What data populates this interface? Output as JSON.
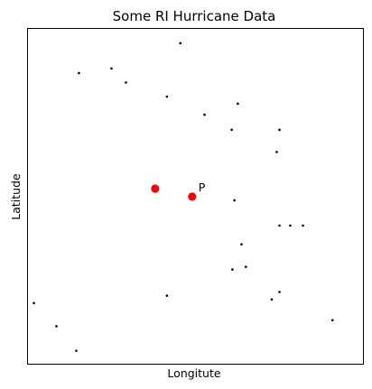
{
  "chart_data": {
    "type": "scatter",
    "title": "Some RI Hurricane Data",
    "xlabel": "Longitute",
    "ylabel": "Latitude",
    "xlim": [
      0,
      100
    ],
    "ylim": [
      0,
      100
    ],
    "ticks": "none",
    "grid": false,
    "series": [
      {
        "marker": "dot-small",
        "color": "#000000",
        "points": [
          [
            45.5,
            95.6
          ],
          [
            15.3,
            86.7
          ],
          [
            25.0,
            88.1
          ],
          [
            29.3,
            83.9
          ],
          [
            41.5,
            79.7
          ],
          [
            52.7,
            74.3
          ],
          [
            62.6,
            77.6
          ],
          [
            60.8,
            69.8
          ],
          [
            75.0,
            69.8
          ],
          [
            74.2,
            63.2
          ],
          [
            61.6,
            48.8
          ],
          [
            75.0,
            41.3
          ],
          [
            78.2,
            41.3
          ],
          [
            82.0,
            41.3
          ],
          [
            63.7,
            35.7
          ],
          [
            61.0,
            28.2
          ],
          [
            65.0,
            29.0
          ],
          [
            41.5,
            20.4
          ],
          [
            75.0,
            21.5
          ],
          [
            72.7,
            19.3
          ],
          [
            1.9,
            18.2
          ],
          [
            8.6,
            11.3
          ],
          [
            14.5,
            4.0
          ],
          [
            90.8,
            13.1
          ]
        ]
      },
      {
        "marker": "dot-large",
        "color": "#ff0000",
        "points": [
          [
            38.0,
            52.3
          ],
          [
            49.0,
            49.9
          ]
        ]
      }
    ],
    "annotations": [
      {
        "text": "P",
        "x": 49.0,
        "y": 49.9
      }
    ]
  }
}
